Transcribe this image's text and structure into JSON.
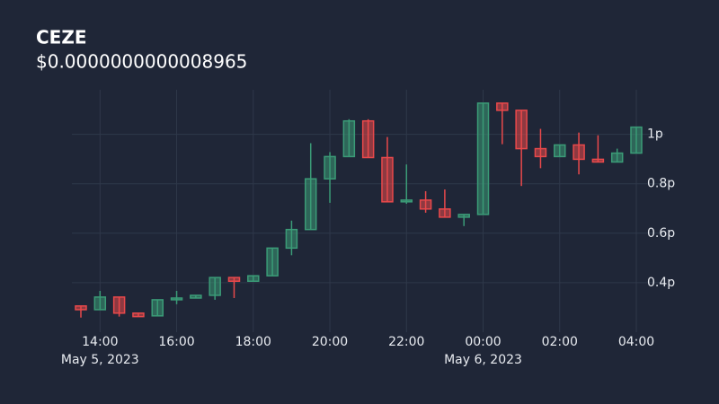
{
  "chart_data": {
    "type": "candlestick",
    "title": "CEZE",
    "subtitle": "$0.0000000000008965",
    "x": [
      "2023-05-05 13:30",
      "2023-05-05 14:00",
      "2023-05-05 14:30",
      "2023-05-05 15:00",
      "2023-05-05 15:30",
      "2023-05-05 16:00",
      "2023-05-05 16:30",
      "2023-05-05 17:00",
      "2023-05-05 17:30",
      "2023-05-05 18:00",
      "2023-05-05 18:30",
      "2023-05-05 19:00",
      "2023-05-05 19:30",
      "2023-05-05 20:00",
      "2023-05-05 20:30",
      "2023-05-05 21:00",
      "2023-05-05 21:30",
      "2023-05-05 22:00",
      "2023-05-05 22:30",
      "2023-05-05 23:00",
      "2023-05-05 23:30",
      "2023-05-06 00:00",
      "2023-05-06 00:30",
      "2023-05-06 01:00",
      "2023-05-06 01:30",
      "2023-05-06 02:00",
      "2023-05-06 02:30",
      "2023-05-06 03:00",
      "2023-05-06 03:30",
      "2023-05-06 04:00"
    ],
    "open": [
      0.306,
      0.291,
      0.342,
      0.277,
      0.266,
      0.331,
      0.338,
      0.349,
      0.421,
      0.406,
      0.428,
      0.54,
      0.615,
      0.82,
      0.91,
      1.054,
      0.906,
      0.727,
      0.734,
      0.698,
      0.665,
      0.676,
      1.126,
      1.097,
      0.942,
      0.91,
      0.957,
      0.899,
      0.888,
      0.924
    ],
    "high": [
      0.306,
      0.367,
      0.342,
      0.277,
      0.331,
      0.367,
      0.349,
      0.421,
      0.421,
      0.428,
      0.54,
      0.651,
      0.964,
      0.928,
      1.061,
      1.061,
      0.989,
      0.878,
      0.77,
      0.777,
      0.676,
      1.126,
      1.126,
      1.097,
      1.022,
      0.957,
      1.007,
      0.996,
      0.942,
      1.029
    ],
    "low": [
      0.259,
      0.291,
      0.263,
      0.263,
      0.266,
      0.313,
      0.338,
      0.331,
      0.338,
      0.406,
      0.428,
      0.511,
      0.615,
      0.723,
      0.91,
      0.906,
      0.727,
      0.719,
      0.683,
      0.665,
      0.629,
      0.676,
      0.96,
      0.791,
      0.863,
      0.91,
      0.838,
      0.888,
      0.888,
      0.924
    ],
    "close": [
      0.291,
      0.342,
      0.277,
      0.263,
      0.331,
      0.338,
      0.349,
      0.421,
      0.406,
      0.428,
      0.54,
      0.615,
      0.82,
      0.91,
      1.054,
      0.906,
      0.727,
      0.734,
      0.698,
      0.665,
      0.676,
      1.126,
      1.097,
      0.942,
      0.91,
      0.957,
      0.899,
      0.888,
      0.924,
      1.029
    ],
    "up_color": "#3b9b77",
    "down_color": "#e9494b",
    "ylim": [
      0.2,
      1.18
    ],
    "yticks": [
      {
        "value": 0.4,
        "label": "0.4p"
      },
      {
        "value": 0.6,
        "label": "0.6p"
      },
      {
        "value": 0.8,
        "label": "0.8p"
      },
      {
        "value": 1,
        "label": "1p"
      }
    ],
    "xticks": [
      {
        "value": "2023-05-05 14:00",
        "label": "14:00"
      },
      {
        "value": "2023-05-05 16:00",
        "label": "16:00"
      },
      {
        "value": "2023-05-05 18:00",
        "label": "18:00"
      },
      {
        "value": "2023-05-05 20:00",
        "label": "20:00"
      },
      {
        "value": "2023-05-05 22:00",
        "label": "22:00"
      },
      {
        "value": "2023-05-06 00:00",
        "label": "00:00"
      },
      {
        "value": "2023-05-06 02:00",
        "label": "02:00"
      },
      {
        "value": "2023-05-06 04:00",
        "label": "04:00"
      }
    ],
    "x_date_labels": [
      {
        "value": "2023-05-05 14:00",
        "label": "May 5, 2023"
      },
      {
        "value": "2023-05-06 00:00",
        "label": "May 6, 2023"
      }
    ],
    "grid": true
  }
}
